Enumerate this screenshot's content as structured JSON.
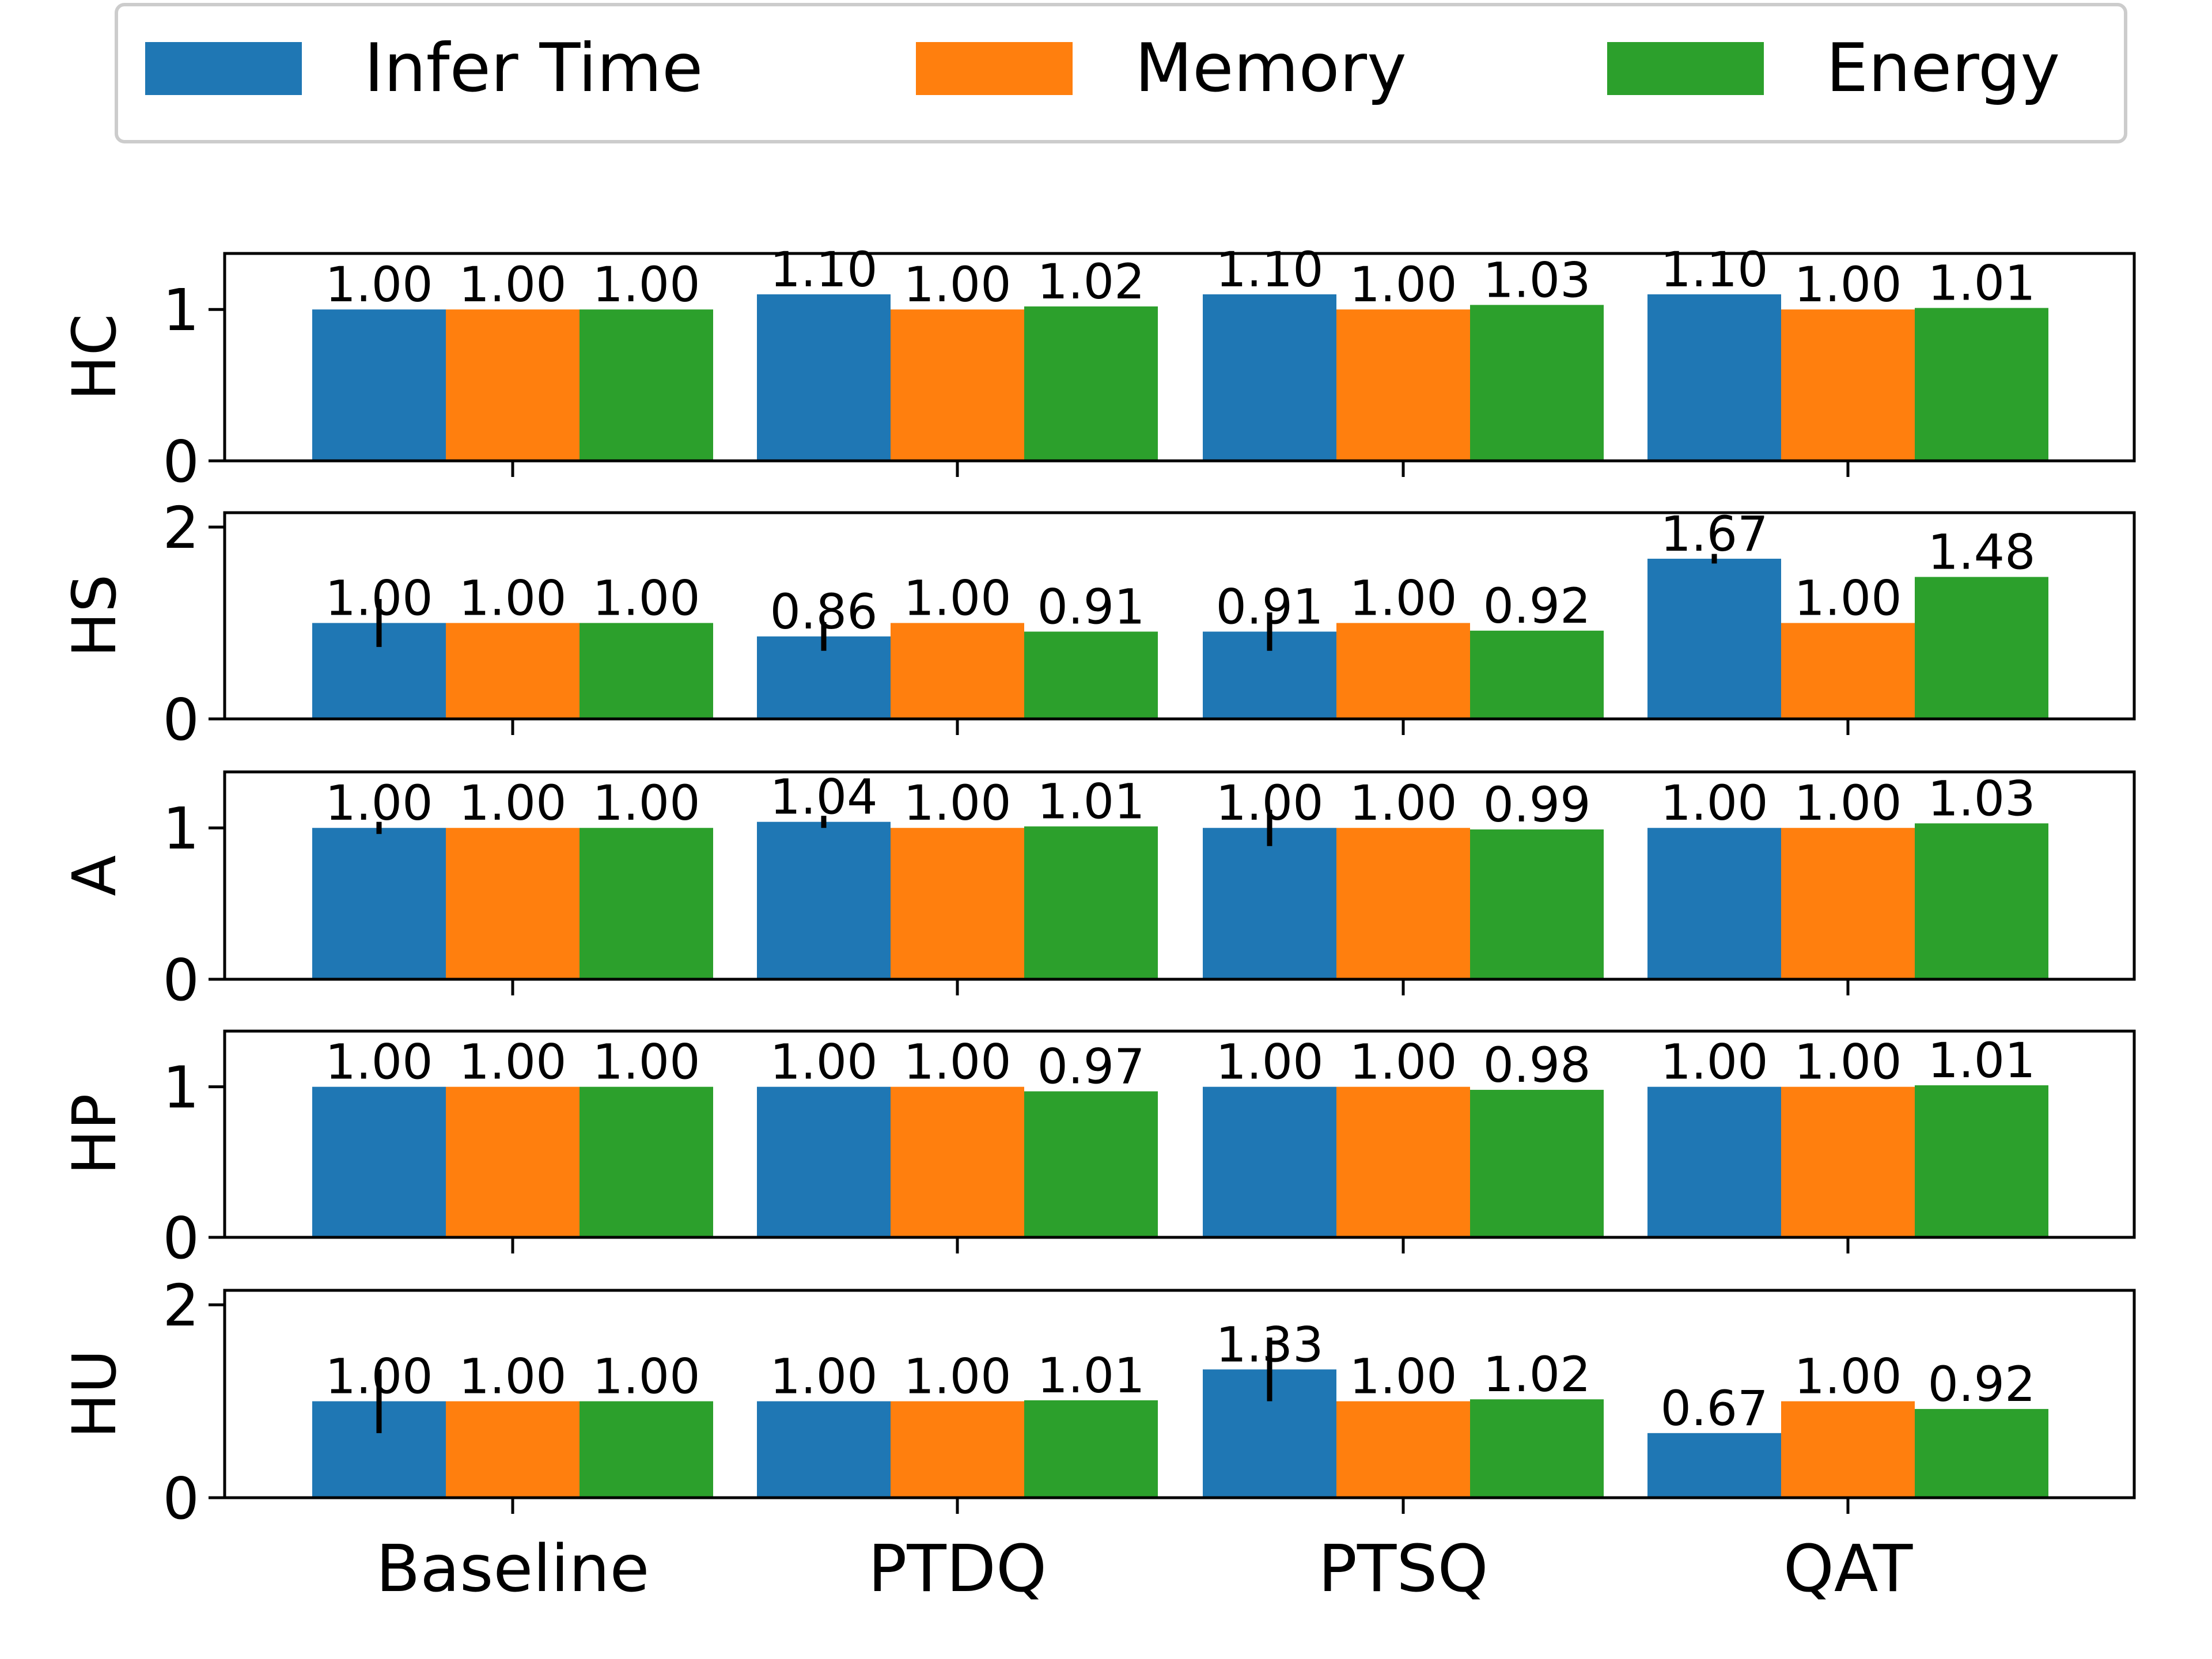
{
  "chart_data": {
    "type": "bar",
    "categories": [
      "Baseline",
      "PTDQ",
      "PTSQ",
      "QAT"
    ],
    "series": [
      {
        "name": "Infer Time",
        "color": "#1f77b4"
      },
      {
        "name": "Memory",
        "color": "#ff7f0e"
      },
      {
        "name": "Energy",
        "color": "#2ca02c"
      }
    ],
    "legend": {
      "position": "top",
      "columns": 3
    },
    "grid": false,
    "panels": [
      {
        "ylabel": "HC",
        "ylim": [
          0,
          1.37
        ],
        "yticks": [
          "0",
          "1"
        ],
        "values": [
          [
            1.0,
            1.0,
            1.0
          ],
          [
            1.1,
            1.0,
            1.02
          ],
          [
            1.1,
            1.0,
            1.03
          ],
          [
            1.1,
            1.0,
            1.01
          ]
        ],
        "labels": [
          [
            "1.00",
            "1.00",
            "1.00"
          ],
          [
            "1.10",
            "1.00",
            "1.02"
          ],
          [
            "1.10",
            "1.00",
            "1.03"
          ],
          [
            "1.10",
            "1.00",
            "1.01"
          ]
        ],
        "errors": [
          [
            0,
            0,
            0
          ],
          [
            0,
            0,
            0
          ],
          [
            0,
            0,
            0
          ],
          [
            0,
            0,
            0
          ]
        ]
      },
      {
        "ylabel": "HS",
        "ylim": [
          0,
          2.15
        ],
        "yticks": [
          "0",
          "2"
        ],
        "values": [
          [
            1.0,
            1.0,
            1.0
          ],
          [
            0.86,
            1.0,
            0.91
          ],
          [
            0.91,
            1.0,
            0.92
          ],
          [
            1.67,
            1.0,
            1.48
          ]
        ],
        "labels": [
          [
            "1.00",
            "1.00",
            "1.00"
          ],
          [
            "0.86",
            "1.00",
            "0.91"
          ],
          [
            "0.91",
            "1.00",
            "0.92"
          ],
          [
            "1.67",
            "1.00",
            "1.48"
          ]
        ],
        "errors": [
          [
            0.25,
            0,
            0
          ],
          [
            0.15,
            0,
            0
          ],
          [
            0.2,
            0,
            0
          ],
          [
            0.05,
            0,
            0
          ]
        ]
      },
      {
        "ylabel": "A",
        "ylim": [
          0,
          1.37
        ],
        "yticks": [
          "0",
          "1"
        ],
        "values": [
          [
            1.0,
            1.0,
            1.0
          ],
          [
            1.04,
            1.0,
            1.01
          ],
          [
            1.0,
            1.0,
            0.99
          ],
          [
            1.0,
            1.0,
            1.03
          ]
        ],
        "labels": [
          [
            "1.00",
            "1.00",
            "1.00"
          ],
          [
            "1.04",
            "1.00",
            "1.01"
          ],
          [
            "1.00",
            "1.00",
            "0.99"
          ],
          [
            "1.00",
            "1.00",
            "1.03"
          ]
        ],
        "errors": [
          [
            0.04,
            0,
            0
          ],
          [
            0.04,
            0,
            0
          ],
          [
            0.12,
            0,
            0
          ],
          [
            0,
            0,
            0
          ]
        ]
      },
      {
        "ylabel": "HP",
        "ylim": [
          0,
          1.37
        ],
        "yticks": [
          "0",
          "1"
        ],
        "values": [
          [
            1.0,
            1.0,
            1.0
          ],
          [
            1.0,
            1.0,
            0.97
          ],
          [
            1.0,
            1.0,
            0.98
          ],
          [
            1.0,
            1.0,
            1.01
          ]
        ],
        "labels": [
          [
            "1.00",
            "1.00",
            "1.00"
          ],
          [
            "1.00",
            "1.00",
            "0.97"
          ],
          [
            "1.00",
            "1.00",
            "0.98"
          ],
          [
            "1.00",
            "1.00",
            "1.01"
          ]
        ],
        "errors": [
          [
            0,
            0,
            0
          ],
          [
            0,
            0,
            0
          ],
          [
            0,
            0,
            0
          ],
          [
            0,
            0,
            0
          ]
        ]
      },
      {
        "ylabel": "HU",
        "ylim": [
          0,
          2.15
        ],
        "yticks": [
          "0",
          "2"
        ],
        "values": [
          [
            1.0,
            1.0,
            1.0
          ],
          [
            1.0,
            1.0,
            1.01
          ],
          [
            1.33,
            1.0,
            1.02
          ],
          [
            0.67,
            1.0,
            0.92
          ]
        ],
        "labels": [
          [
            "1.00",
            "1.00",
            "1.00"
          ],
          [
            "1.00",
            "1.00",
            "1.01"
          ],
          [
            "1.33",
            "1.00",
            "1.02"
          ],
          [
            "0.67",
            "1.00",
            "0.92"
          ]
        ],
        "errors": [
          [
            0.33,
            0,
            0
          ],
          [
            0,
            0,
            0
          ],
          [
            0.33,
            0,
            0
          ],
          [
            0,
            0,
            0
          ]
        ]
      }
    ]
  }
}
